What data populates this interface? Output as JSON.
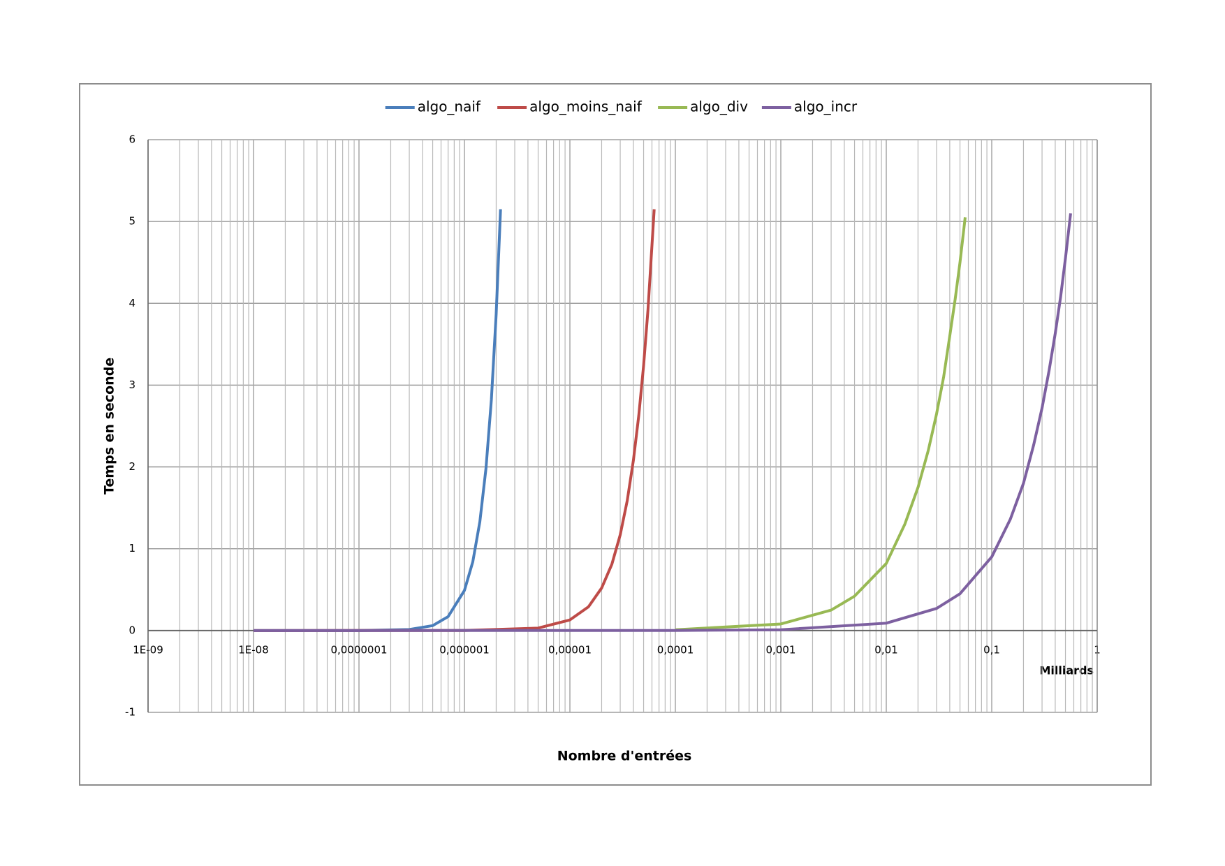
{
  "chart_data": {
    "type": "line",
    "x_label": "Nombre d'entrées",
    "y_label": "Temps en seconde",
    "x_unit_label": "Milliards",
    "xscale": "log",
    "grid": true,
    "minor_grid": true,
    "legend_position": "top",
    "xlim": [
      1e-09,
      1
    ],
    "xticks": [
      {
        "value": 1e-09,
        "label": "1E-09"
      },
      {
        "value": 1e-08,
        "label": "1E-08"
      },
      {
        "value": 1e-07,
        "label": "0,0000001"
      },
      {
        "value": 1e-06,
        "label": "0,000001"
      },
      {
        "value": 1e-05,
        "label": "0,00001"
      },
      {
        "value": 0.0001,
        "label": "0,0001"
      },
      {
        "value": 0.001,
        "label": "0,001"
      },
      {
        "value": 0.01,
        "label": "0,01"
      },
      {
        "value": 0.1,
        "label": "0,1"
      },
      1
    ],
    "ylim": [
      -1,
      6
    ],
    "yticks": [
      -1,
      0,
      1,
      2,
      3,
      4,
      5,
      6
    ],
    "series": [
      {
        "name": "algo_naif",
        "color": "#4a7ebb",
        "x": [
          1e-08,
          1e-07,
          3e-07,
          5e-07,
          7e-07,
          1e-06,
          1.2e-06,
          1.4e-06,
          1.6e-06,
          1.8e-06,
          2e-06,
          2.2e-06
        ],
        "values": [
          0,
          0,
          0.013,
          0.06,
          0.17,
          0.49,
          0.84,
          1.33,
          1.98,
          2.82,
          3.87,
          5.15
        ]
      },
      {
        "name": "algo_moins_naif",
        "color": "#be4b48",
        "x": [
          1e-08,
          1e-06,
          5e-06,
          1e-05,
          1.5e-05,
          2e-05,
          2.5e-05,
          3e-05,
          3.5e-05,
          4e-05,
          4.5e-05,
          5e-05,
          5.5e-05,
          6.3e-05
        ],
        "values": [
          0,
          0.001,
          0.03,
          0.13,
          0.29,
          0.52,
          0.81,
          1.17,
          1.59,
          2.08,
          2.63,
          3.24,
          3.92,
          5.15
        ]
      },
      {
        "name": "algo_div",
        "color": "#98b954",
        "x": [
          0.0001,
          0.001,
          0.003,
          0.005,
          0.01,
          0.015,
          0.02,
          0.025,
          0.03,
          0.035,
          0.04,
          0.045,
          0.05,
          0.056
        ],
        "values": [
          0.01,
          0.08,
          0.25,
          0.42,
          0.82,
          1.3,
          1.75,
          2.2,
          2.65,
          3.1,
          3.6,
          4.05,
          4.5,
          5.05
        ]
      },
      {
        "name": "algo_incr",
        "color": "#7d60a0",
        "x": [
          1e-08,
          0.0001,
          0.001,
          0.01,
          0.03,
          0.05,
          0.1,
          0.15,
          0.2,
          0.25,
          0.3,
          0.35,
          0.4,
          0.45,
          0.5,
          0.56
        ],
        "values": [
          0,
          0.001,
          0.01,
          0.09,
          0.27,
          0.45,
          0.9,
          1.36,
          1.8,
          2.27,
          2.72,
          3.18,
          3.63,
          4.08,
          4.55,
          5.1
        ]
      }
    ]
  }
}
